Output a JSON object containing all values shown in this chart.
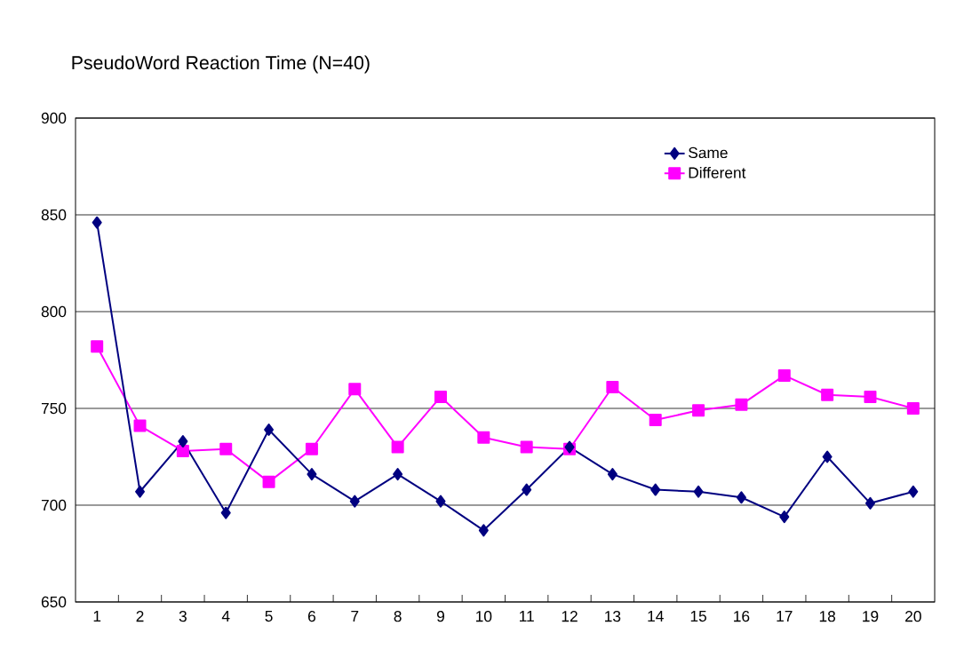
{
  "chart_data": {
    "type": "line",
    "title": "PseudoWord Reaction Time (N=40)",
    "categories": [
      "1",
      "2",
      "3",
      "4",
      "5",
      "6",
      "7",
      "8",
      "9",
      "10",
      "11",
      "12",
      "13",
      "14",
      "15",
      "16",
      "17",
      "18",
      "19",
      "20"
    ],
    "series": [
      {
        "name": "Same",
        "color": "#000080",
        "marker": "diamond",
        "values": [
          846,
          707,
          733,
          696,
          739,
          716,
          702,
          716,
          702,
          687,
          708,
          730,
          716,
          708,
          707,
          704,
          694,
          725,
          701,
          707
        ]
      },
      {
        "name": "Different",
        "color": "#ff00ff",
        "marker": "square",
        "values": [
          782,
          741,
          728,
          729,
          712,
          729,
          760,
          730,
          756,
          735,
          730,
          729,
          761,
          744,
          749,
          752,
          767,
          757,
          756,
          750
        ]
      }
    ],
    "ylim": [
      650,
      900
    ],
    "yticks": [
      650,
      700,
      750,
      800,
      850,
      900
    ],
    "grid": "y",
    "legend": "top right",
    "line_style": "solid"
  }
}
